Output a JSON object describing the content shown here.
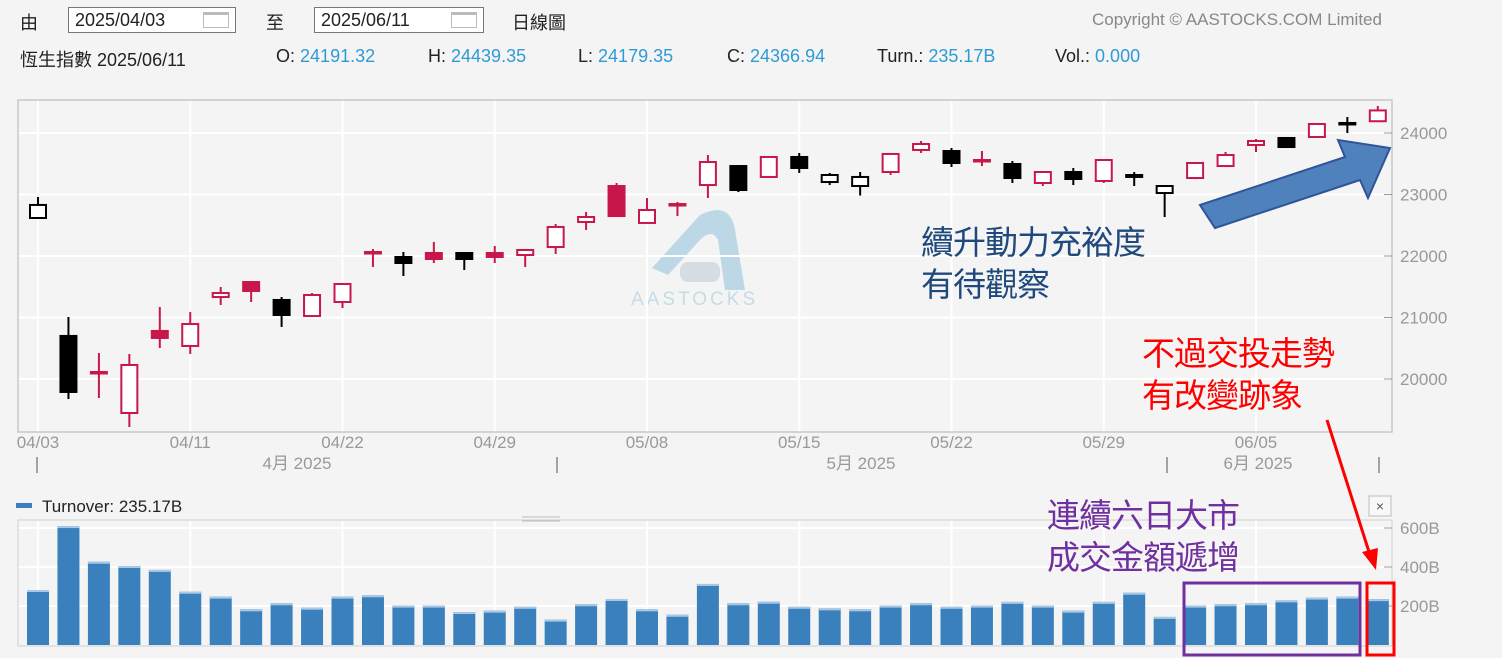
{
  "header": {
    "from_label": "由",
    "from_date": "2025/04/03",
    "to_label": "至",
    "to_date": "2025/06/11",
    "chart_type_label": "日線圖",
    "copyright": "Copyright © AASTOCKS.COM Limited",
    "index_name": "恆生指數",
    "quote_date": "2025/06/11",
    "o_label": "O:",
    "o_value": "24191.32",
    "h_label": "H:",
    "h_value": "24439.35",
    "l_label": "L:",
    "l_value": "24179.35",
    "c_label": "C:",
    "c_value": "24366.94",
    "turn_label": "Turn.:",
    "turn_value": "235.17B",
    "vol_label": "Vol.:",
    "vol_value": "0.000"
  },
  "watermark": "AASTOCKS",
  "volume_legend": "Turnover: 235.17B",
  "close_icon_label": "×",
  "annotations": {
    "blue_text": [
      "續升動力充裕度",
      "有待觀察"
    ],
    "red_text": [
      "不過交投走勢",
      "有改變跡象"
    ],
    "purple_text": [
      "連續六日大市",
      "成交金額遞增"
    ]
  },
  "colors": {
    "up": "#c8174a",
    "down": "#000000",
    "value_text": "#2e9bd6",
    "turnover_bar": "#3a80bd",
    "blue_text": "#1f497d",
    "red_text": "#ff0000",
    "purple_text": "#7030a0",
    "arrow_fill": "#4f81bd"
  },
  "chart_data": [
    {
      "type": "candlestick",
      "y_ticks": [
        "24000",
        "23000",
        "22000",
        "21000",
        "20000"
      ],
      "ylim": [
        19100,
        24500
      ],
      "x_tick_labels": [
        "04/03",
        "04/11",
        "04/22",
        "04/29",
        "05/08",
        "05/15",
        "05/22",
        "05/29",
        "06/05"
      ],
      "month_labels": [
        "4月 2025",
        "5月 2025",
        "6月 2025"
      ],
      "fields": [
        "date",
        "open",
        "high",
        "low",
        "close",
        "color"
      ],
      "candles": [
        [
          "04/03",
          22618,
          22960,
          22618,
          22830,
          "black"
        ],
        [
          "04/07",
          20700,
          21008,
          19675,
          19789,
          "black"
        ],
        [
          "04/08",
          20114,
          20423,
          19691,
          20114,
          "red"
        ],
        [
          "04/09",
          19447,
          20407,
          19220,
          20228,
          "red"
        ],
        [
          "04/10",
          20781,
          21171,
          20504,
          20667,
          "red"
        ],
        [
          "04/11",
          20537,
          21089,
          20407,
          20894,
          "red"
        ],
        [
          "04/14",
          21333,
          21496,
          21203,
          21398,
          "red"
        ],
        [
          "04/15",
          21577,
          21590,
          21252,
          21431,
          "red"
        ],
        [
          "04/16",
          21285,
          21333,
          20846,
          21041,
          "black"
        ],
        [
          "04/17",
          21024,
          21398,
          21008,
          21366,
          "red"
        ],
        [
          "04/22",
          21252,
          21561,
          21154,
          21545,
          "red"
        ],
        [
          "04/23",
          22065,
          22114,
          21821,
          22065,
          "red"
        ],
        [
          "04/24",
          21984,
          22065,
          21675,
          21886,
          "black"
        ],
        [
          "04/25",
          22049,
          22228,
          21886,
          21951,
          "red"
        ],
        [
          "04/28",
          22049,
          22049,
          21772,
          21951,
          "black"
        ],
        [
          "04/29",
          22049,
          22163,
          21886,
          21984,
          "red"
        ],
        [
          "04/30",
          22016,
          22098,
          21821,
          22098,
          "red"
        ],
        [
          "05/02",
          22146,
          22520,
          22033,
          22472,
          "red"
        ],
        [
          "05/06",
          22553,
          22715,
          22423,
          22634,
          "red"
        ],
        [
          "05/07",
          23138,
          23187,
          22650,
          22650,
          "red"
        ],
        [
          "05/08",
          22537,
          22943,
          22537,
          22748,
          "red"
        ],
        [
          "05/09",
          22845,
          22878,
          22650,
          22845,
          "red"
        ],
        [
          "05/12",
          23154,
          23642,
          22943,
          23528,
          "red"
        ],
        [
          "05/13",
          23463,
          23480,
          23040,
          23073,
          "black"
        ],
        [
          "05/14",
          23285,
          23620,
          23270,
          23610,
          "red"
        ],
        [
          "05/15",
          23610,
          23675,
          23350,
          23431,
          "black"
        ],
        [
          "05/16",
          23203,
          23350,
          23154,
          23317,
          "black"
        ],
        [
          "05/19",
          23138,
          23366,
          22984,
          23285,
          "black"
        ],
        [
          "05/20",
          23366,
          23675,
          23317,
          23659,
          "red"
        ],
        [
          "05/21",
          23724,
          23870,
          23675,
          23821,
          "red"
        ],
        [
          "05/22",
          23707,
          23756,
          23447,
          23512,
          "black"
        ],
        [
          "05/23",
          23561,
          23707,
          23463,
          23561,
          "red"
        ],
        [
          "05/26",
          23496,
          23545,
          23187,
          23268,
          "black"
        ],
        [
          "05/27",
          23187,
          23382,
          23138,
          23366,
          "red"
        ],
        [
          "05/28",
          23366,
          23431,
          23154,
          23252,
          "black"
        ],
        [
          "05/29",
          23220,
          23577,
          23187,
          23561,
          "red"
        ],
        [
          "05/30",
          23317,
          23366,
          23138,
          23285,
          "black"
        ],
        [
          "06/02",
          23024,
          23138,
          22634,
          23138,
          "black"
        ],
        [
          "06/03",
          23268,
          23528,
          23250,
          23512,
          "red"
        ],
        [
          "06/04",
          23463,
          23691,
          23447,
          23642,
          "red"
        ],
        [
          "06/05",
          23805,
          23902,
          23691,
          23870,
          "red"
        ],
        [
          "06/06",
          23919,
          23935,
          23756,
          23772,
          "black"
        ],
        [
          "06/09",
          23935,
          24160,
          23919,
          24146,
          "red"
        ],
        [
          "06/10",
          24163,
          24260,
          24000,
          24163,
          "black"
        ],
        [
          "06/11",
          24191.32,
          24439.35,
          24179.35,
          24366.94,
          "red"
        ]
      ]
    },
    {
      "type": "bar",
      "series_name": "Turnover",
      "unit": "B",
      "y_ticks": [
        "600B",
        "400B",
        "200B"
      ],
      "ylim": [
        0,
        640
      ],
      "values": [
        282,
        610,
        427,
        405,
        385,
        273,
        248,
        183,
        214,
        191,
        248,
        255,
        202,
        202,
        169,
        176,
        196,
        130,
        209,
        236,
        183,
        155,
        313,
        214,
        222,
        196,
        188,
        183,
        202,
        214,
        196,
        202,
        221,
        202,
        176,
        221,
        268,
        144,
        202,
        209,
        214,
        229,
        243,
        248,
        235.17
      ]
    }
  ]
}
